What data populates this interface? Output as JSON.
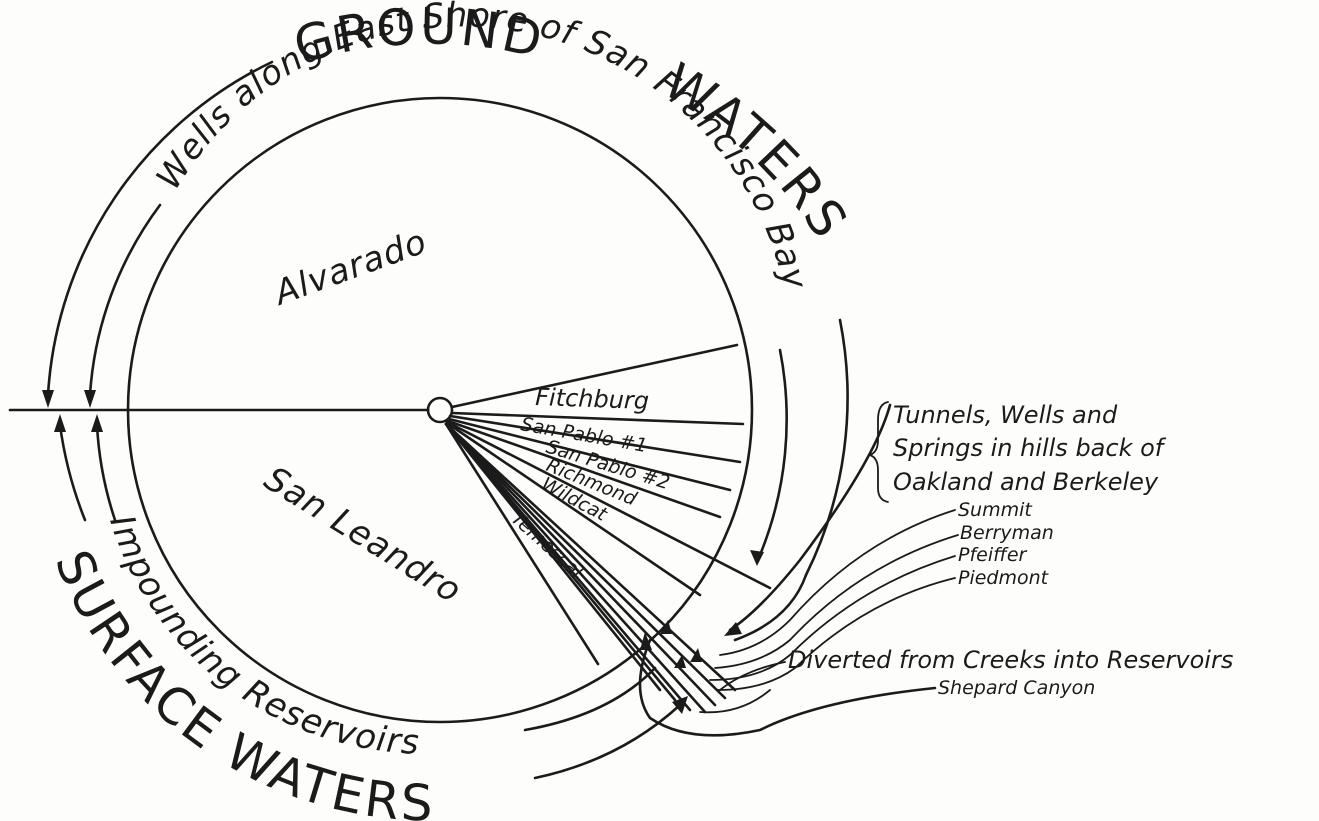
{
  "title_top": "GROUND",
  "title_right": "WATERS",
  "title_bottom": "SURFACE WATERS",
  "ground_subtitle": "Wells along East Shore of San Francisco Bay",
  "surface_subtitle": "Impounding Reservoirs",
  "sectors": {
    "alvarado": "Alvarado",
    "san_leandro": "San Leandro",
    "fitchburg": "Fitchburg",
    "san_pablo_1": "San Pablo #1",
    "san_pablo_2": "San Pablo #2",
    "richmond": "Richmond",
    "wildcat": "Wildcat",
    "temescal": "Temescal"
  },
  "tunnels_note": {
    "line1": "Tunnels, Wells and",
    "line2": "Springs in hills back of",
    "line3": "Oakland and Berkeley"
  },
  "tunnel_items": [
    "Summit",
    "Berryman",
    "Pfeiffer",
    "Piedmont"
  ],
  "diverted_note": "Diverted from Creeks into Reservoirs",
  "diverted_item": "Shepard Canyon"
}
